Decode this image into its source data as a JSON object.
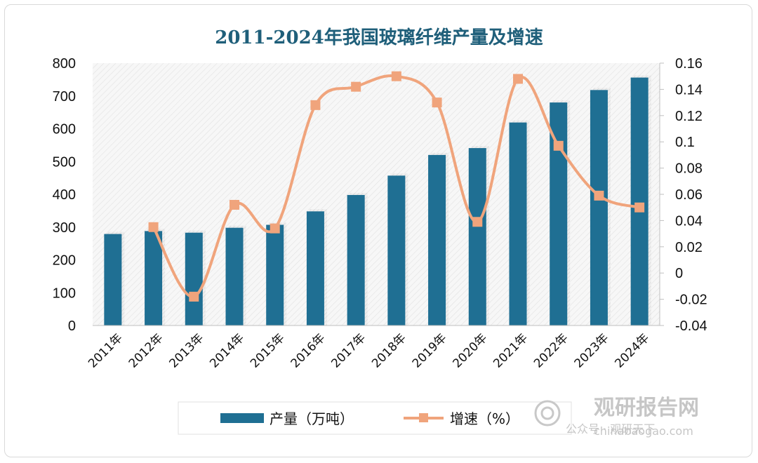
{
  "chart_data": {
    "type": "bar",
    "title": "2011-2024年我国玻璃纤维产量及增速",
    "categories": [
      "2011年",
      "2012年",
      "2013年",
      "2014年",
      "2015年",
      "2016年",
      "2017年",
      "2018年",
      "2019年",
      "2020年",
      "2021年",
      "2022年",
      "2023年",
      "2024年"
    ],
    "series": [
      {
        "name": "产量（万吨）",
        "type": "bar",
        "axis": "left",
        "values": [
          279,
          288,
          283,
          298,
          307,
          348,
          398,
          457,
          520,
          541,
          619,
          680,
          718,
          756
        ]
      },
      {
        "name": "增速（%）",
        "type": "line",
        "axis": "right",
        "values": [
          null,
          0.035,
          -0.018,
          0.052,
          0.034,
          0.128,
          0.142,
          0.15,
          0.13,
          0.039,
          0.148,
          0.097,
          0.059,
          0.05
        ]
      }
    ],
    "y_left": {
      "range": [
        0,
        800
      ],
      "ticks": [
        "0",
        "100",
        "200",
        "300",
        "400",
        "500",
        "600",
        "700",
        "800"
      ]
    },
    "y_right": {
      "range": [
        -0.04,
        0.16
      ],
      "ticks": [
        "-0.04",
        "-0.02",
        "0",
        "0.02",
        "0.04",
        "0.06",
        "0.08",
        "0.1",
        "0.12",
        "0.14",
        "0.16"
      ]
    },
    "legend_position": "bottom",
    "grid": false,
    "colors": {
      "bar": "#1f6f93",
      "line": "#f0a47c",
      "title": "#1f5f7a"
    }
  },
  "watermark": {
    "brand": "观研报告网",
    "line2": "公众号 · 观研天下",
    "url": "chinabaogao.com"
  }
}
